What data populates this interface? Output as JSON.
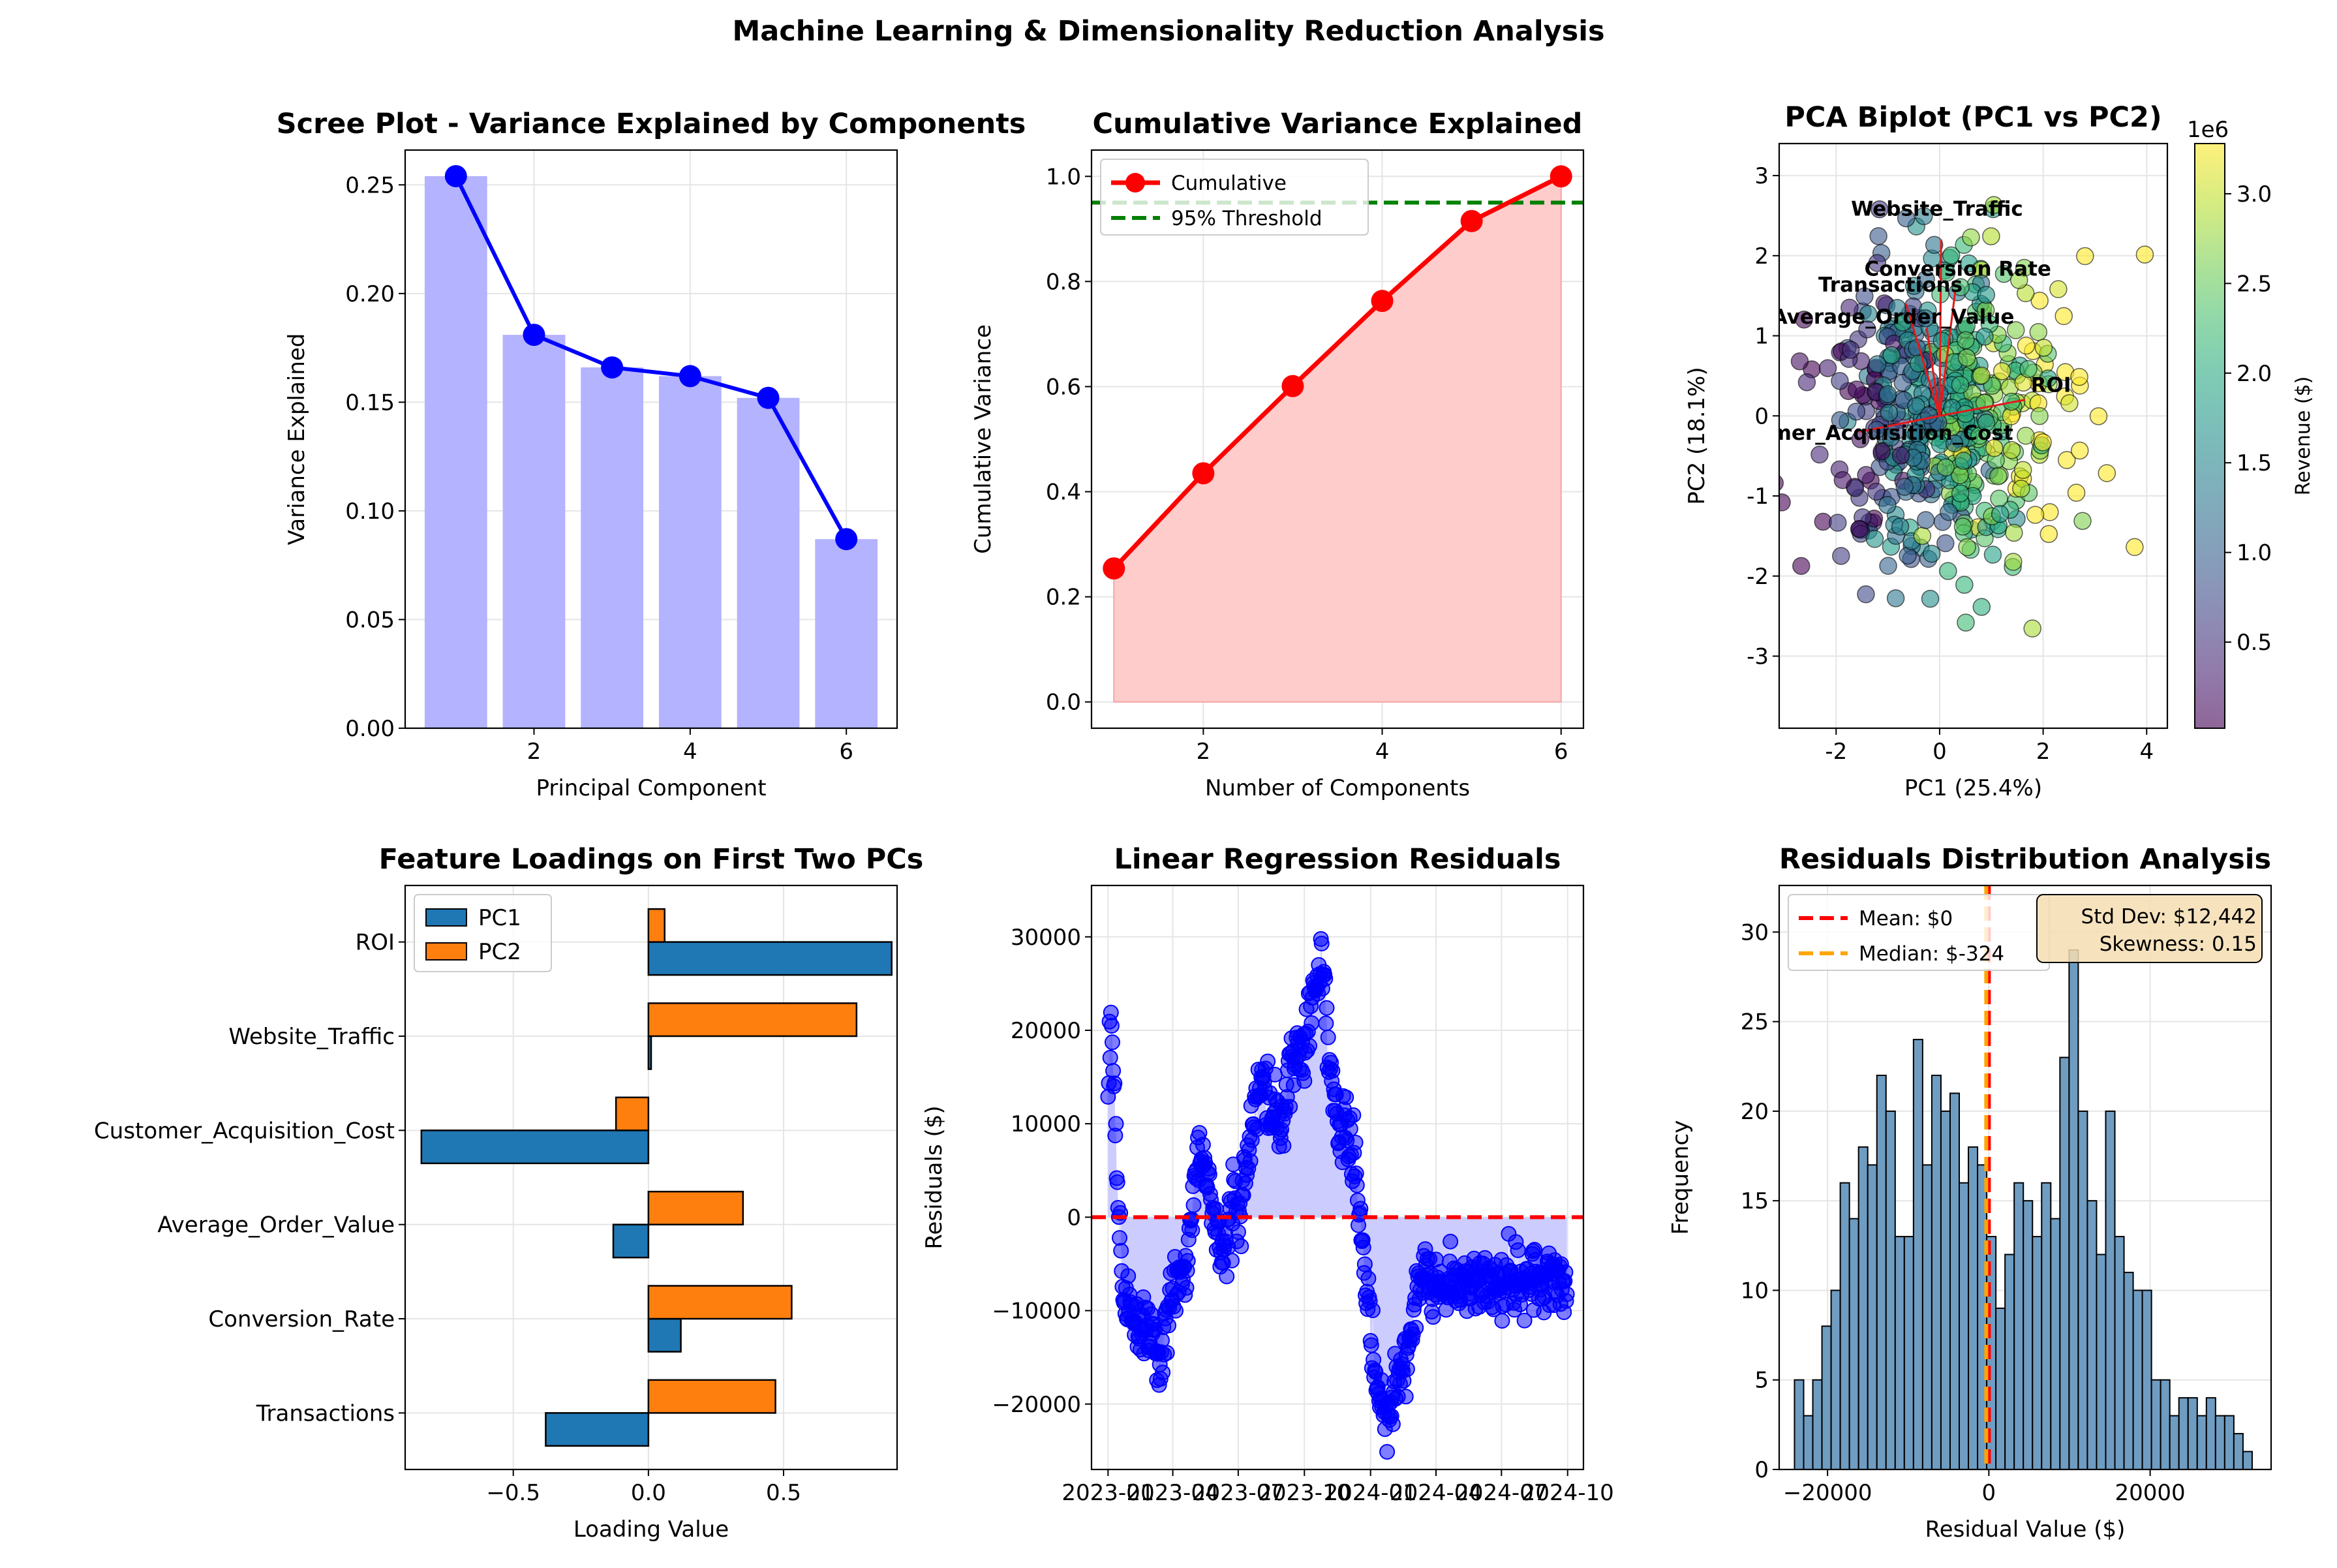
{
  "figure": {
    "suptitle": "Machine Learning & Dimensionality Reduction Analysis"
  },
  "colors": {
    "blue": "#1f77b4",
    "orange": "#ff7f0e",
    "scree_bar": "#b3b3ff",
    "scree_line": "#0000ff",
    "red": "#ff0000",
    "fill_red": "#ffcccc",
    "green": "#008000",
    "resid_fill": "#ccccff",
    "hist": "#6f9cc1",
    "median": "#ffa500",
    "grid": "#e5e5e5"
  },
  "chart_data": [
    {
      "id": "scree",
      "type": "bar",
      "title": "Scree Plot - Variance Explained by Components",
      "xlabel": "Principal Component",
      "ylabel": "Variance Explained",
      "xlim": [
        0.35,
        6.65
      ],
      "ylim": [
        0,
        0.266
      ],
      "xticks": [
        2,
        4,
        6
      ],
      "yticks": [
        0.0,
        0.05,
        0.1,
        0.15,
        0.2,
        0.25
      ],
      "ytick_labels": [
        "0.00",
        "0.05",
        "0.10",
        "0.15",
        "0.20",
        "0.25"
      ],
      "categories": [
        1,
        2,
        3,
        4,
        5,
        6
      ],
      "values": [
        0.254,
        0.181,
        0.166,
        0.162,
        0.152,
        0.087
      ],
      "grid": true
    },
    {
      "id": "cumulative",
      "type": "line",
      "title": "Cumulative Variance Explained",
      "xlabel": "Number of Components",
      "ylabel": "Cumulative Variance",
      "xlim": [
        0.75,
        6.25
      ],
      "ylim": [
        -0.05,
        1.05
      ],
      "xticks": [
        2,
        4,
        6
      ],
      "yticks": [
        0.0,
        0.2,
        0.4,
        0.6,
        0.8,
        1.0
      ],
      "ytick_labels": [
        "0.0",
        "0.2",
        "0.4",
        "0.6",
        "0.8",
        "1.0"
      ],
      "x": [
        1,
        2,
        3,
        4,
        5,
        6
      ],
      "y": [
        0.254,
        0.435,
        0.601,
        0.763,
        0.915,
        1.0
      ],
      "threshold": 0.95,
      "legend": [
        "Cumulative",
        "95% Threshold"
      ],
      "legend_loc": "upper left",
      "grid": true
    },
    {
      "id": "biplot",
      "type": "scatter",
      "title": "PCA Biplot (PC1 vs PC2)",
      "xlabel": "PC1 (25.4%)",
      "ylabel": "PC2 (18.1%)",
      "xlim": [
        -3.1,
        4.4
      ],
      "ylim": [
        -3.9,
        3.4
      ],
      "xticks": [
        -2,
        0,
        2,
        4
      ],
      "yticks": [
        -3,
        -2,
        -1,
        0,
        1,
        2,
        3
      ],
      "colorbar": {
        "label": "Revenue ($)",
        "offset": "1e6",
        "min": 0.02,
        "max": 3.28,
        "ticks": [
          0.5,
          1.0,
          1.5,
          2.0,
          2.5,
          3.0
        ],
        "tick_labels": [
          "0.5",
          "1.0",
          "1.5",
          "2.0",
          "2.5",
          "3.0"
        ],
        "cmap": "viridis"
      },
      "loading_vectors": [
        {
          "name": "Website_Traffic",
          "x": 0.03,
          "y": 2.2,
          "lx": -0.05,
          "ly": 2.5
        },
        {
          "name": "Conversion Rate",
          "x": 0.3,
          "y": 1.55,
          "lx": 0.35,
          "ly": 1.75
        },
        {
          "name": "Transactions",
          "x": -0.65,
          "y": 1.4,
          "lx": -0.95,
          "ly": 1.55
        },
        {
          "name": "Average_Order_Value",
          "x": -0.25,
          "y": 1.1,
          "lx": -0.9,
          "ly": 1.15
        },
        {
          "name": "ROI",
          "x": 1.65,
          "y": 0.2,
          "lx": 2.15,
          "ly": 0.3
        },
        {
          "name": "Customer_Acquisition_Cost",
          "x": -1.55,
          "y": -0.2,
          "lx": -1.55,
          "ly": -0.3
        }
      ],
      "grid": true
    },
    {
      "id": "loadings",
      "type": "bar",
      "title": "Feature Loadings on First Two PCs",
      "xlabel": "Loading Value",
      "xlim": [
        -0.9,
        0.92
      ],
      "xticks": [
        -0.5,
        0.0,
        0.5
      ],
      "xtick_labels": [
        "−0.5",
        "0.0",
        "0.5"
      ],
      "categories": [
        "Transactions",
        "Conversion_Rate",
        "Average_Order_Value",
        "Customer_Acquisition_Cost",
        "Website_Traffic",
        "ROI"
      ],
      "series": [
        {
          "name": "PC1",
          "values": [
            -0.38,
            0.12,
            -0.13,
            -0.84,
            0.01,
            0.9
          ]
        },
        {
          "name": "PC2",
          "values": [
            0.47,
            0.53,
            0.35,
            -0.12,
            0.77,
            0.06
          ]
        }
      ],
      "legend_loc": "upper left",
      "grid": true
    },
    {
      "id": "residuals",
      "type": "scatter",
      "title": "Linear Regression Residuals",
      "ylabel": "Residuals ($)",
      "xlim": [
        "2022-12-09",
        "2024-10-23"
      ],
      "ylim": [
        -27000,
        35500
      ],
      "xticks": [
        "2023-01",
        "2023-04",
        "2023-07",
        "2023-10",
        "2024-01",
        "2024-04",
        "2024-07",
        "2024-10"
      ],
      "yticks": [
        -20000,
        -10000,
        0,
        10000,
        20000,
        30000
      ],
      "ytick_labels": [
        "−20000",
        "−10000",
        "0",
        "10000",
        "20000",
        "30000"
      ],
      "start_date": "2023-01-01",
      "end_date": "2024-09-30",
      "anchors": [
        [
          0,
          14000
        ],
        [
          5,
          21000
        ],
        [
          12,
          4000
        ],
        [
          20,
          -8000
        ],
        [
          40,
          -12000
        ],
        [
          60,
          -11000
        ],
        [
          70,
          -16000
        ],
        [
          85,
          -10000
        ],
        [
          100,
          -6000
        ],
        [
          108,
          -8000
        ],
        [
          115,
          -2000
        ],
        [
          125,
          8000
        ],
        [
          135,
          5000
        ],
        [
          150,
          -2000
        ],
        [
          160,
          -4000
        ],
        [
          175,
          2000
        ],
        [
          185,
          0
        ],
        [
          195,
          6000
        ],
        [
          210,
          15000
        ],
        [
          225,
          12000
        ],
        [
          240,
          9000
        ],
        [
          255,
          18000
        ],
        [
          270,
          16000
        ],
        [
          280,
          22000
        ],
        [
          290,
          25000
        ],
        [
          298,
          29000
        ],
        [
          310,
          14000
        ],
        [
          325,
          8000
        ],
        [
          335,
          9000
        ],
        [
          345,
          4000
        ],
        [
          360,
          -8000
        ],
        [
          375,
          -18000
        ],
        [
          390,
          -22000
        ],
        [
          405,
          -17000
        ],
        [
          420,
          -12000
        ],
        [
          438,
          -5000
        ],
        [
          445,
          -7000
        ]
      ],
      "grid": true
    },
    {
      "id": "hist",
      "type": "bar",
      "title": "Residuals Distribution Analysis",
      "xlabel": "Residual Value ($)",
      "ylabel": "Frequency",
      "xlim": [
        -26000,
        35000
      ],
      "ylim": [
        0,
        32.6
      ],
      "xticks": [
        -20000,
        0,
        20000
      ],
      "xtick_labels": [
        "−20000",
        "0",
        "20000"
      ],
      "yticks": [
        0,
        5,
        10,
        15,
        20,
        25,
        30
      ],
      "bin_start": -24100,
      "bin_width": 1135,
      "counts": [
        5,
        3,
        5,
        8,
        10,
        16,
        14,
        18,
        17,
        22,
        20,
        13,
        13,
        24,
        17,
        22,
        20,
        21,
        16,
        18,
        17,
        13,
        9,
        12,
        16,
        15,
        13,
        16,
        14,
        23,
        29,
        20,
        15,
        12,
        20,
        13,
        11,
        10,
        10,
        5,
        5,
        3,
        4,
        4,
        3,
        4,
        3,
        3,
        2,
        1
      ],
      "mean_line": 0,
      "median_line": -324,
      "legend": [
        "Mean: $0",
        "Median: $-324"
      ],
      "stats_box": [
        "Std Dev: $12,442",
        "Skewness: 0.15"
      ],
      "grid": true
    }
  ]
}
